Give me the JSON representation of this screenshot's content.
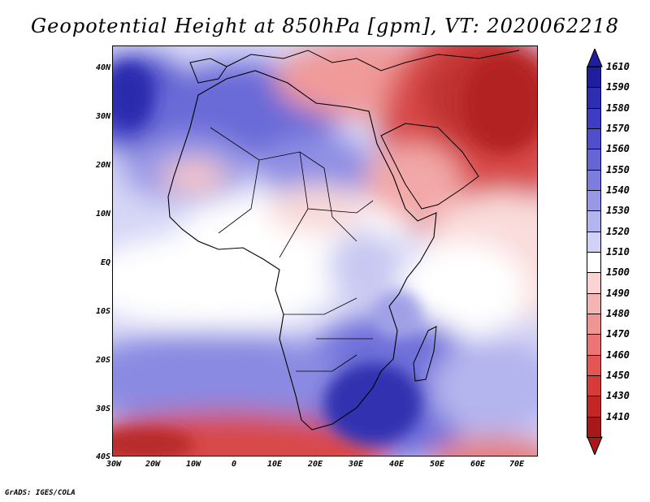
{
  "title": "Geopotential Height at 850hPa [gpm], VT: 2020062218",
  "credit": "GrADS: IGES/COLA",
  "axes": {
    "lat_labels": [
      "40N",
      "30N",
      "20N",
      "10N",
      "EQ",
      "10S",
      "20S",
      "30S",
      "40S"
    ],
    "lon_labels": [
      "30W",
      "20W",
      "10W",
      "0",
      "10E",
      "20E",
      "30E",
      "40E",
      "50E",
      "60E",
      "70E"
    ]
  },
  "colorbar": {
    "levels": [
      "1610",
      "1590",
      "1580",
      "1570",
      "1560",
      "1550",
      "1540",
      "1530",
      "1520",
      "1510",
      "1500",
      "1490",
      "1480",
      "1470",
      "1460",
      "1450",
      "1430",
      "1410"
    ],
    "colors": [
      "#1e1e9e",
      "#2e2eb4",
      "#3c3cc4",
      "#4f4fce",
      "#6565d6",
      "#7d7dde",
      "#9898e6",
      "#b4b4ee",
      "#d2d2f6",
      "#ffffff",
      "#fad4d4",
      "#f5b4b4",
      "#f19494",
      "#ec7474",
      "#e45656",
      "#d83a3a",
      "#c42626",
      "#a81818"
    ]
  }
}
